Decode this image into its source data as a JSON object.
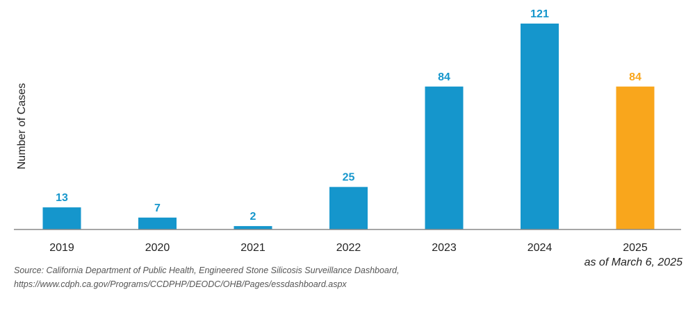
{
  "chart_data": {
    "type": "bar",
    "title": "",
    "xlabel": "",
    "ylabel": "Number of Cases",
    "categories": [
      "2019",
      "2020",
      "2021",
      "2022",
      "2023",
      "2024",
      "2025"
    ],
    "values": [
      13,
      7,
      2,
      25,
      84,
      121,
      84
    ],
    "highlight_index": 6,
    "ylim": [
      0,
      121
    ],
    "grid": false,
    "colors": {
      "bar": "#1596cc",
      "highlight": "#f9a61c",
      "axis": "#888888"
    }
  },
  "note": "as of March 6, 2025",
  "source": {
    "line1": "Source: California Department of Public Health, Engineered Stone Silicosis Surveillance Dashboard,",
    "line2": "https://www.cdph.ca.gov/Programs/CCDPHP/DEODC/OHB/Pages/essdashboard.aspx"
  }
}
